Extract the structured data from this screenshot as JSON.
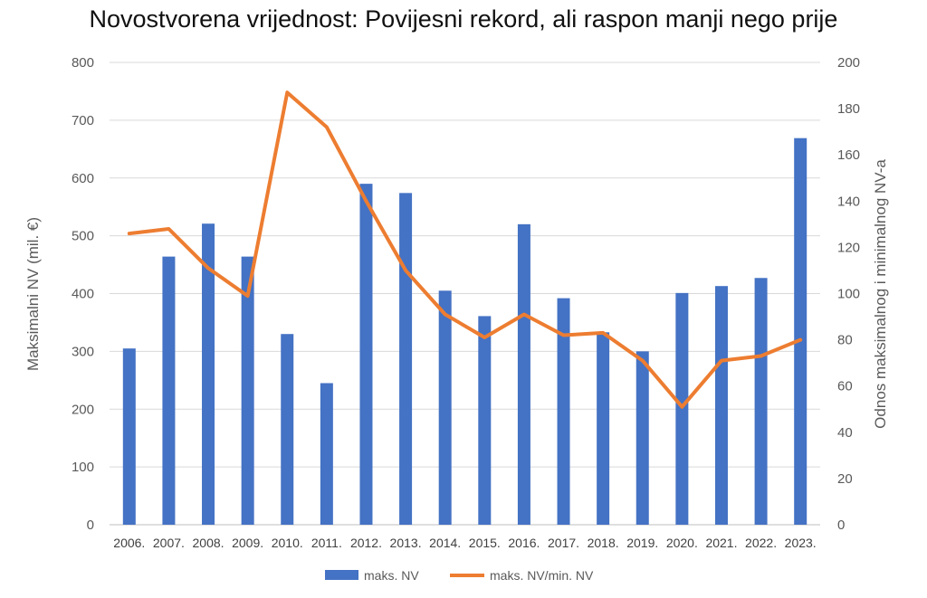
{
  "chart_data": {
    "type": "bar",
    "title": "Novostvorena vrijednost: Povijesni rekord, ali raspon manji nego prije",
    "ylabel_left": "Maksimalni NV (mil. €)",
    "ylabel_right": "Odnos maksimalnog i minimalnog NV-a",
    "categories": [
      "2006.",
      "2007.",
      "2008.",
      "2009.",
      "2010.",
      "2011.",
      "2012.",
      "2013.",
      "2014.",
      "2015.",
      "2016.",
      "2017.",
      "2018.",
      "2019.",
      "2020.",
      "2021.",
      "2022.",
      "2023."
    ],
    "ylim_left": [
      0,
      800
    ],
    "ylim_right": [
      0,
      200
    ],
    "yticks_left": [
      0,
      100,
      200,
      300,
      400,
      500,
      600,
      700,
      800
    ],
    "yticks_right": [
      0,
      20,
      40,
      60,
      80,
      100,
      120,
      140,
      160,
      180,
      200
    ],
    "grid": true,
    "legend_position": "bottom",
    "series": [
      {
        "name": "maks. NV",
        "type": "bar",
        "axis": "left",
        "color": "#4472C4",
        "values": [
          305,
          464,
          521,
          464,
          330,
          245,
          590,
          574,
          405,
          361,
          520,
          392,
          333,
          300,
          401,
          413,
          427,
          669
        ]
      },
      {
        "name": "maks. NV/min. NV",
        "type": "line",
        "axis": "right",
        "color": "#ED7D31",
        "values": [
          126,
          128,
          111,
          99,
          187,
          172,
          140,
          110,
          91,
          81,
          91,
          82,
          83,
          71,
          51,
          71,
          73,
          80
        ]
      }
    ]
  }
}
